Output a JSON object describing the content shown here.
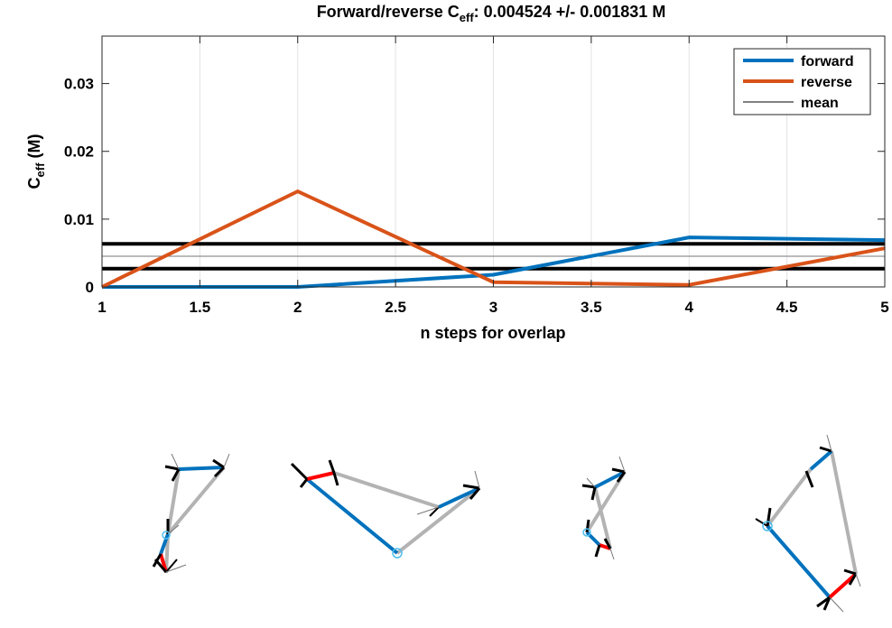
{
  "chart_data": {
    "type": "line",
    "title_main": "Forward/reverse C",
    "title_sub": "eff",
    "title_rest": ": 0.004524 +/- 0.001831 M",
    "ylabel_main": "C",
    "ylabel_sub": "eff",
    "ylabel_rest": " (M)",
    "xlabel": "n steps for overlap",
    "xlim": [
      1,
      5
    ],
    "ylim": [
      0,
      0.037
    ],
    "xticks": [
      1,
      1.5,
      2,
      2.5,
      3,
      3.5,
      4,
      4.5,
      5
    ],
    "xtick_labels": [
      "1",
      "1.5",
      "2",
      "2.5",
      "3",
      "3.5",
      "4",
      "4.5",
      "5"
    ],
    "yticks": [
      0,
      0.01,
      0.02,
      0.03
    ],
    "ytick_labels": [
      "0",
      "0.01",
      "0.02",
      "0.03"
    ],
    "grid": "vertical",
    "legend_position": "top-right",
    "series": [
      {
        "name": "forward",
        "color": "#0072BD",
        "x": [
          1,
          2,
          3,
          4,
          5
        ],
        "y": [
          0.0,
          0.0,
          0.0018,
          0.0073,
          0.0069
        ]
      },
      {
        "name": "reverse",
        "color": "#D95319",
        "x": [
          1,
          2,
          3,
          4,
          5
        ],
        "y": [
          0.0,
          0.0141,
          0.0007,
          0.0003,
          0.0057
        ]
      }
    ],
    "mean_line": {
      "name": "mean",
      "color": "#000000",
      "value": 0.004524,
      "band": 0.001831
    }
  },
  "molecules": {
    "colors": {
      "blue": "#0072BD",
      "gray": "#B3B3B3",
      "red": "#FF0000",
      "black": "#000000",
      "marker": "#4DBEEE"
    }
  }
}
